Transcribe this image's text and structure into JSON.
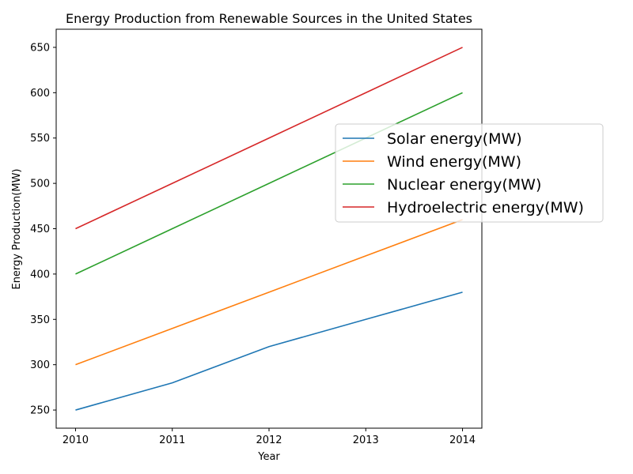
{
  "chart_data": {
    "type": "line",
    "title": "Energy Production from Renewable Sources in the United States",
    "xlabel": "Year",
    "ylabel": "Energy Production(MW)",
    "x": [
      "2010",
      "2011",
      "2012",
      "2013",
      "2014"
    ],
    "xlim": [
      2009.8,
      2014.2
    ],
    "ylim": [
      230,
      670
    ],
    "yticks": [
      250,
      300,
      350,
      400,
      450,
      500,
      550,
      600,
      650
    ],
    "grid": false,
    "legend": "center-right",
    "series": [
      {
        "name": "Solar energy(MW)",
        "color": "#1f77b4",
        "values": [
          250,
          280,
          320,
          350,
          380
        ]
      },
      {
        "name": "Wind energy(MW)",
        "color": "#ff7f0e",
        "values": [
          300,
          340,
          380,
          420,
          460
        ]
      },
      {
        "name": "Nuclear energy(MW)",
        "color": "#2ca02c",
        "values": [
          400,
          450,
          500,
          550,
          600
        ]
      },
      {
        "name": "Hydroelectric energy(MW)",
        "color": "#d62728",
        "values": [
          450,
          500,
          550,
          600,
          650
        ]
      }
    ]
  }
}
